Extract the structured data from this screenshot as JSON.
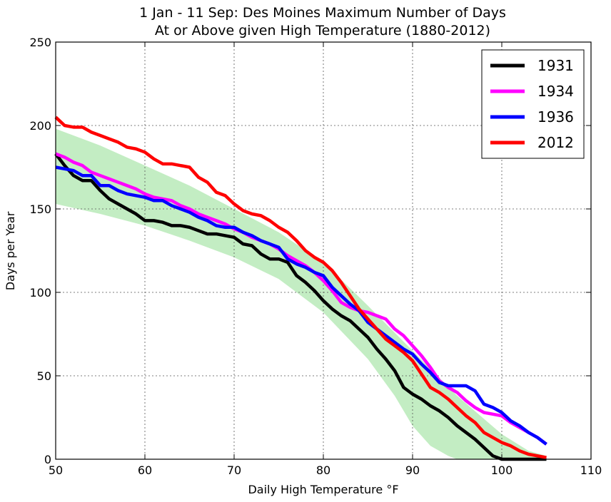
{
  "chart_data": {
    "type": "line",
    "title": "1 Jan - 11 Sep: Des Moines Maximum Number of Days",
    "subtitle": "At or Above given High Temperature (1880-2012)",
    "xlabel": "Daily High Temperature °F",
    "ylabel": "Days per Year",
    "xlim": [
      50,
      110
    ],
    "ylim": [
      0,
      250
    ],
    "xticks": [
      50,
      60,
      70,
      80,
      90,
      100,
      110
    ],
    "yticks": [
      0,
      50,
      100,
      150,
      200,
      250
    ],
    "grid": true,
    "legend_position": "top-right",
    "background_band": {
      "color": "#b8eab8",
      "lower": [
        [
          50,
          153
        ],
        [
          55,
          147
        ],
        [
          60,
          140
        ],
        [
          65,
          131
        ],
        [
          70,
          121
        ],
        [
          75,
          108
        ],
        [
          80,
          88
        ],
        [
          85,
          60
        ],
        [
          88,
          38
        ],
        [
          90,
          20
        ],
        [
          92,
          8
        ],
        [
          94,
          2
        ],
        [
          95,
          0
        ],
        [
          105,
          0
        ]
      ],
      "upper": [
        [
          50,
          198
        ],
        [
          55,
          188
        ],
        [
          60,
          176
        ],
        [
          65,
          164
        ],
        [
          70,
          150
        ],
        [
          75,
          136
        ],
        [
          80,
          118
        ],
        [
          85,
          92
        ],
        [
          90,
          65
        ],
        [
          95,
          38
        ],
        [
          100,
          15
        ],
        [
          103,
          5
        ],
        [
          105,
          2
        ]
      ]
    },
    "series": [
      {
        "name": "1931",
        "color": "#000000",
        "x": [
          50,
          51,
          52,
          53,
          54,
          55,
          56,
          57,
          58,
          59,
          60,
          61,
          62,
          63,
          64,
          65,
          66,
          67,
          68,
          69,
          70,
          71,
          72,
          73,
          74,
          75,
          76,
          77,
          78,
          79,
          80,
          81,
          82,
          83,
          84,
          85,
          86,
          87,
          88,
          89,
          90,
          91,
          92,
          93,
          94,
          95,
          96,
          97,
          98,
          99,
          100,
          101,
          102,
          103,
          104,
          105
        ],
        "values": [
          183,
          176,
          170,
          167,
          167,
          161,
          156,
          153,
          150,
          147,
          143,
          143,
          142,
          140,
          140,
          139,
          137,
          135,
          135,
          134,
          133,
          129,
          128,
          123,
          120,
          120,
          118,
          110,
          106,
          101,
          95,
          90,
          86,
          83,
          78,
          73,
          66,
          60,
          53,
          43,
          39,
          36,
          32,
          29,
          25,
          20,
          16,
          12,
          7,
          2,
          0,
          0,
          0,
          0,
          0,
          0
        ]
      },
      {
        "name": "1934",
        "color": "#ff00ff",
        "x": [
          50,
          51,
          52,
          53,
          54,
          55,
          56,
          57,
          58,
          59,
          60,
          61,
          62,
          63,
          64,
          65,
          66,
          67,
          68,
          69,
          70,
          71,
          72,
          73,
          74,
          75,
          76,
          77,
          78,
          79,
          80,
          81,
          82,
          83,
          84,
          85,
          86,
          87,
          88,
          89,
          90,
          91,
          92,
          93,
          94,
          95,
          96,
          97,
          98,
          99,
          100,
          101,
          102,
          103,
          104,
          105
        ],
        "values": [
          183,
          181,
          178,
          176,
          172,
          170,
          168,
          166,
          164,
          162,
          159,
          157,
          156,
          155,
          152,
          150,
          147,
          145,
          143,
          141,
          138,
          136,
          133,
          131,
          129,
          126,
          122,
          119,
          116,
          112,
          107,
          101,
          94,
          91,
          89,
          88,
          86,
          84,
          78,
          74,
          68,
          62,
          55,
          47,
          43,
          40,
          35,
          31,
          28,
          27,
          26,
          22,
          19,
          16,
          13,
          9
        ]
      },
      {
        "name": "1936",
        "color": "#0000ff",
        "x": [
          50,
          51,
          52,
          53,
          54,
          55,
          56,
          57,
          58,
          59,
          60,
          61,
          62,
          63,
          64,
          65,
          66,
          67,
          68,
          69,
          70,
          71,
          72,
          73,
          74,
          75,
          76,
          77,
          78,
          79,
          80,
          81,
          82,
          83,
          84,
          85,
          86,
          87,
          88,
          89,
          90,
          91,
          92,
          93,
          94,
          95,
          96,
          97,
          98,
          99,
          100,
          101,
          102,
          103,
          104,
          105
        ],
        "values": [
          175,
          174,
          173,
          170,
          170,
          164,
          164,
          161,
          159,
          158,
          157,
          155,
          155,
          152,
          150,
          148,
          145,
          143,
          140,
          139,
          139,
          136,
          134,
          131,
          129,
          127,
          120,
          117,
          115,
          112,
          110,
          103,
          98,
          93,
          89,
          82,
          78,
          74,
          70,
          66,
          63,
          57,
          52,
          46,
          44,
          44,
          44,
          41,
          33,
          31,
          28,
          23,
          20,
          16,
          13,
          9
        ]
      },
      {
        "name": "2012",
        "color": "#ff0000",
        "x": [
          50,
          51,
          52,
          53,
          54,
          55,
          56,
          57,
          58,
          59,
          60,
          61,
          62,
          63,
          64,
          65,
          66,
          67,
          68,
          69,
          70,
          71,
          72,
          73,
          74,
          75,
          76,
          77,
          78,
          79,
          80,
          81,
          82,
          83,
          84,
          85,
          86,
          87,
          88,
          89,
          90,
          91,
          92,
          93,
          94,
          95,
          96,
          97,
          98,
          99,
          100,
          101,
          102,
          103,
          104,
          105
        ],
        "values": [
          205,
          200,
          199,
          199,
          196,
          194,
          192,
          190,
          187,
          186,
          184,
          180,
          177,
          177,
          176,
          175,
          169,
          166,
          160,
          158,
          153,
          149,
          147,
          146,
          143,
          139,
          136,
          131,
          125,
          121,
          118,
          113,
          106,
          98,
          90,
          84,
          78,
          72,
          68,
          64,
          59,
          51,
          43,
          40,
          36,
          31,
          26,
          22,
          16,
          13,
          10,
          8,
          5,
          3,
          2,
          1
        ]
      }
    ]
  }
}
